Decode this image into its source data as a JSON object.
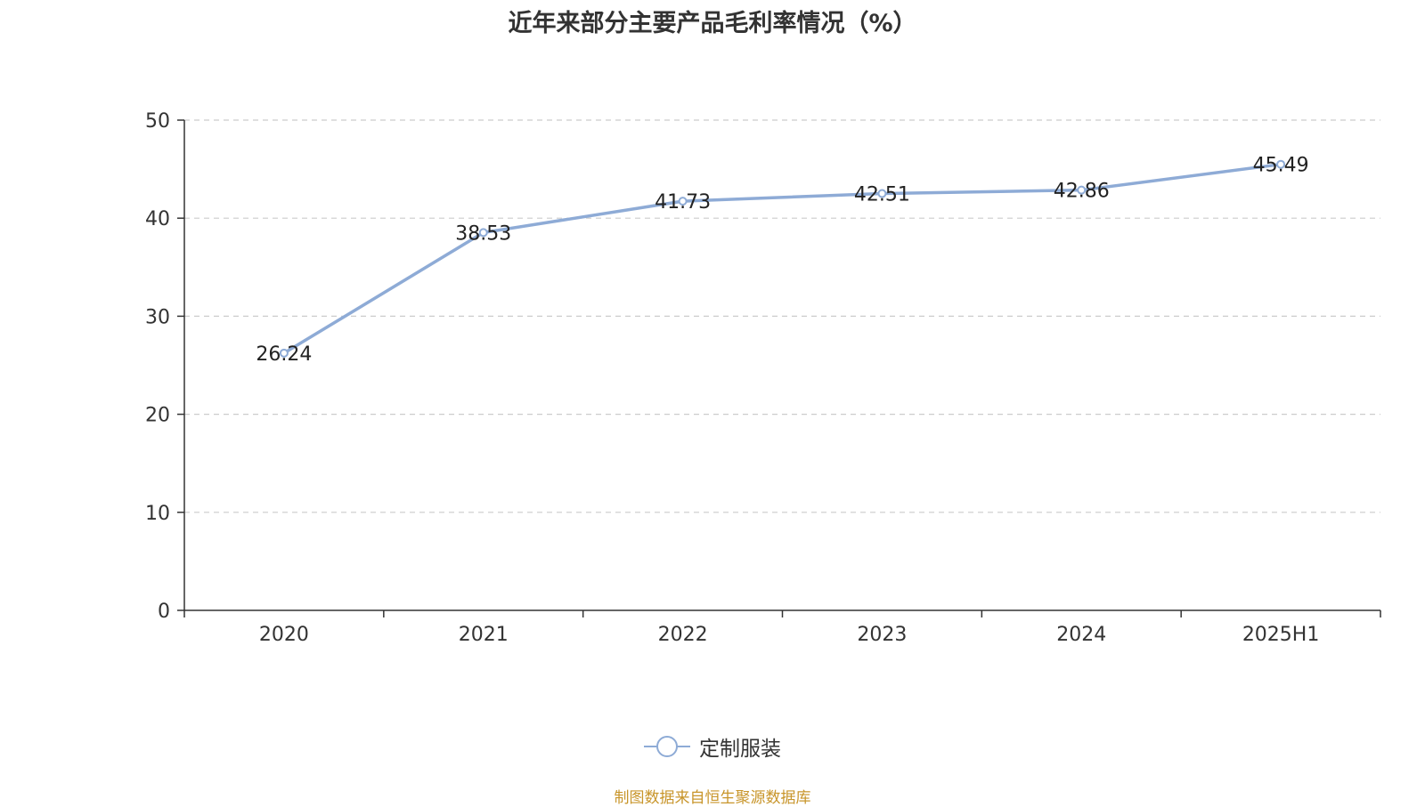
{
  "chart_data": {
    "type": "line",
    "title": "近年来部分主要产品毛利率情况（%）",
    "categories": [
      "2020",
      "2021",
      "2022",
      "2023",
      "2024",
      "2025H1"
    ],
    "series": [
      {
        "name": "定制服装",
        "values": [
          26.24,
          38.53,
          41.73,
          42.51,
          42.86,
          45.49
        ],
        "color": "#8eabd6"
      }
    ],
    "ylim": [
      0,
      50
    ],
    "yticks": [
      0,
      10,
      20,
      30,
      40,
      50
    ],
    "xlabel": "",
    "ylabel": "",
    "grid": true,
    "legend": "bottom-center"
  },
  "footer": {
    "source": "制图数据来自恒生聚源数据库"
  }
}
